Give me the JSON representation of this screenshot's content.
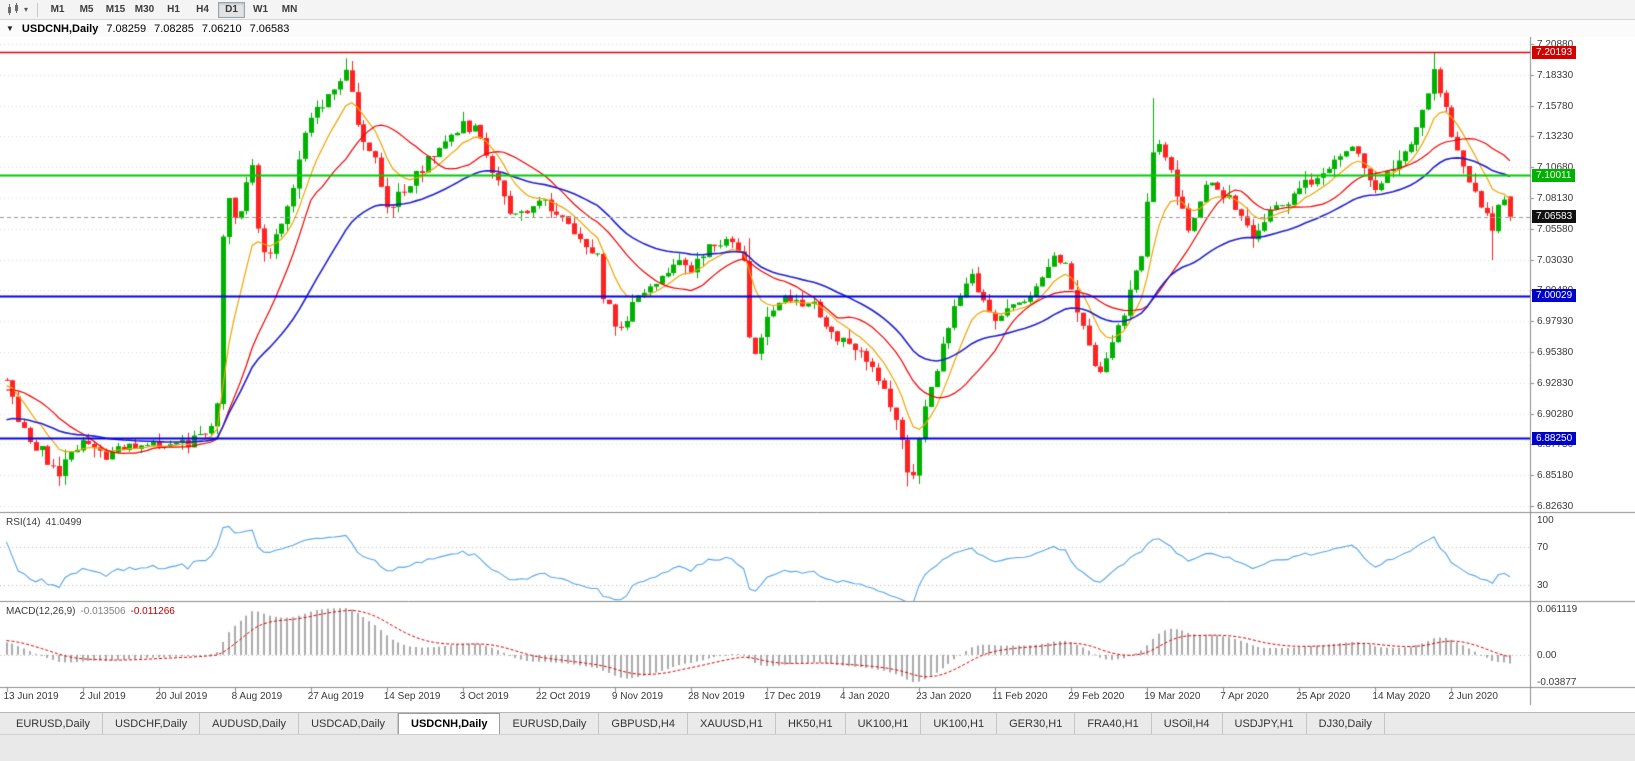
{
  "toolbar": {
    "timeframes": [
      "M1",
      "M5",
      "M15",
      "M30",
      "H1",
      "H4",
      "D1",
      "W1",
      "MN"
    ],
    "active_timeframe": "D1"
  },
  "chart": {
    "title": {
      "collapse_icon": "▼",
      "symbol": "USDCNH,Daily",
      "open": "7.08259",
      "high": "7.08285",
      "low": "7.06210",
      "close": "7.06583"
    },
    "price_axis_ticks": [
      "7.20880",
      "7.18330",
      "7.15780",
      "7.13230",
      "7.10680",
      "7.08130",
      "7.05580",
      "7.03030",
      "7.00480",
      "6.97930",
      "6.95380",
      "6.92830",
      "6.90280",
      "6.87730",
      "6.85180",
      "6.82630"
    ],
    "price_badges": [
      {
        "text": "7.20193",
        "price": 7.20193,
        "bg": "#D40000"
      },
      {
        "text": "7.10011",
        "price": 7.10011,
        "bg": "#00B200"
      },
      {
        "text": "7.06583",
        "price": 7.06583,
        "bg": "#111111"
      },
      {
        "text": "7.00029",
        "price": 7.00029,
        "bg": "#0000CC"
      },
      {
        "text": "6.88250",
        "price": 6.8825,
        "bg": "#0000CC"
      }
    ],
    "horizontal_lines": [
      {
        "price": 7.20193,
        "color": "#E00000",
        "width": 1.5,
        "style": "solid"
      },
      {
        "price": 7.10011,
        "color": "#00CC00",
        "width": 2,
        "style": "solid"
      },
      {
        "price": 7.00029,
        "color": "#0000E6",
        "width": 2,
        "style": "solid"
      },
      {
        "price": 6.8825,
        "color": "#0000E6",
        "width": 2,
        "style": "solid"
      },
      {
        "price": 7.06583,
        "color": "#9A9A9A",
        "width": 1,
        "style": "dash"
      }
    ]
  },
  "chart_data": {
    "type": "candlestick",
    "symbol": "USDCNH",
    "timeframe": "Daily",
    "candles_count": 258,
    "prehistory_bars": 45,
    "noise_seed": 11,
    "up_color": "#00B200",
    "down_color": "#FF2222",
    "last_candle": {
      "open": 7.08259,
      "high": 7.08285,
      "low": 7.0621,
      "close": 7.06583
    },
    "price_path_anchors": [
      [
        -45,
        6.79
      ],
      [
        -30,
        6.862
      ],
      [
        -15,
        6.912
      ],
      [
        -8,
        6.923
      ],
      [
        0,
        6.928
      ],
      [
        2,
        6.9
      ],
      [
        4,
        6.88
      ],
      [
        6,
        6.872
      ],
      [
        8,
        6.856
      ],
      [
        9,
        6.849
      ],
      [
        11,
        6.873
      ],
      [
        13,
        6.88
      ],
      [
        15,
        6.873
      ],
      [
        17,
        6.866
      ],
      [
        19,
        6.874
      ],
      [
        21,
        6.88
      ],
      [
        23,
        6.873
      ],
      [
        25,
        6.877
      ],
      [
        27,
        6.872
      ],
      [
        29,
        6.88
      ],
      [
        31,
        6.878
      ],
      [
        33,
        6.884
      ],
      [
        35,
        6.89
      ],
      [
        36,
        6.908
      ],
      [
        37,
        7.045
      ],
      [
        38,
        7.082
      ],
      [
        39,
        7.062
      ],
      [
        40,
        7.072
      ],
      [
        41,
        7.098
      ],
      [
        42,
        7.108
      ],
      [
        43,
        7.052
      ],
      [
        44,
        7.04
      ],
      [
        45,
        7.032
      ],
      [
        46,
        7.048
      ],
      [
        47,
        7.062
      ],
      [
        48,
        7.072
      ],
      [
        49,
        7.09
      ],
      [
        50,
        7.11
      ],
      [
        51,
        7.135
      ],
      [
        52,
        7.152
      ],
      [
        54,
        7.16
      ],
      [
        56,
        7.172
      ],
      [
        58,
        7.188
      ],
      [
        59,
        7.168
      ],
      [
        60,
        7.142
      ],
      [
        61,
        7.13
      ],
      [
        62,
        7.122
      ],
      [
        63,
        7.112
      ],
      [
        64,
        7.09
      ],
      [
        65,
        7.078
      ],
      [
        66,
        7.072
      ],
      [
        67,
        7.082
      ],
      [
        68,
        7.09
      ],
      [
        70,
        7.1
      ],
      [
        72,
        7.112
      ],
      [
        74,
        7.122
      ],
      [
        76,
        7.132
      ],
      [
        78,
        7.142
      ],
      [
        80,
        7.138
      ],
      [
        82,
        7.12
      ],
      [
        84,
        7.092
      ],
      [
        86,
        7.072
      ],
      [
        88,
        7.068
      ],
      [
        90,
        7.078
      ],
      [
        91,
        7.082
      ],
      [
        93,
        7.072
      ],
      [
        95,
        7.062
      ],
      [
        97,
        7.055
      ],
      [
        99,
        7.042
      ],
      [
        101,
        7.032
      ],
      [
        102,
        6.998
      ],
      [
        103,
        6.99
      ],
      [
        104,
        6.978
      ],
      [
        105,
        6.972
      ],
      [
        107,
        6.992
      ],
      [
        109,
        7.002
      ],
      [
        111,
        7.012
      ],
      [
        113,
        7.022
      ],
      [
        115,
        7.028
      ],
      [
        117,
        7.024
      ],
      [
        119,
        7.036
      ],
      [
        121,
        7.042
      ],
      [
        123,
        7.044
      ],
      [
        125,
        7.038
      ],
      [
        126,
        7.032
      ],
      [
        127,
        6.962
      ],
      [
        128,
        6.952
      ],
      [
        130,
        6.982
      ],
      [
        132,
        6.995
      ],
      [
        134,
        7.0
      ],
      [
        136,
        6.996
      ],
      [
        138,
        6.992
      ],
      [
        140,
        6.978
      ],
      [
        142,
        6.966
      ],
      [
        143,
        6.962
      ],
      [
        145,
        6.958
      ],
      [
        147,
        6.948
      ],
      [
        149,
        6.932
      ],
      [
        151,
        6.908
      ],
      [
        153,
        6.88
      ],
      [
        154,
        6.858
      ],
      [
        155,
        6.852
      ],
      [
        156,
        6.878
      ],
      [
        157,
        6.905
      ],
      [
        158,
        6.928
      ],
      [
        159,
        6.938
      ],
      [
        160,
        6.958
      ],
      [
        161,
        6.972
      ],
      [
        162,
        6.988
      ],
      [
        163,
        7.0
      ],
      [
        164,
        7.008
      ],
      [
        165,
        7.015
      ],
      [
        166,
        7.005
      ],
      [
        167,
        6.995
      ],
      [
        168,
        6.985
      ],
      [
        169,
        6.982
      ],
      [
        171,
        6.988
      ],
      [
        173,
        6.992
      ],
      [
        175,
        7.0
      ],
      [
        177,
        7.018
      ],
      [
        178,
        7.028
      ],
      [
        180,
        7.032
      ],
      [
        181,
        7.028
      ],
      [
        182,
        7.005
      ],
      [
        183,
        6.988
      ],
      [
        184,
        6.972
      ],
      [
        185,
        6.958
      ],
      [
        186,
        6.945
      ],
      [
        187,
        6.938
      ],
      [
        188,
        6.945
      ],
      [
        189,
        6.958
      ],
      [
        190,
        6.972
      ],
      [
        191,
        6.988
      ],
      [
        192,
        7.005
      ],
      [
        193,
        7.022
      ],
      [
        194,
        7.032
      ],
      [
        195,
        7.075
      ],
      [
        196,
        7.118
      ],
      [
        197,
        7.128
      ],
      [
        198,
        7.118
      ],
      [
        199,
        7.108
      ],
      [
        200,
        7.082
      ],
      [
        201,
        7.068
      ],
      [
        202,
        7.055
      ],
      [
        203,
        7.062
      ],
      [
        204,
        7.075
      ],
      [
        205,
        7.088
      ],
      [
        206,
        7.098
      ],
      [
        207,
        7.092
      ],
      [
        208,
        7.085
      ],
      [
        209,
        7.08
      ],
      [
        210,
        7.072
      ],
      [
        211,
        7.065
      ],
      [
        212,
        7.058
      ],
      [
        213,
        7.052
      ],
      [
        214,
        7.056
      ],
      [
        215,
        7.062
      ],
      [
        216,
        7.068
      ],
      [
        217,
        7.072
      ],
      [
        219,
        7.08
      ],
      [
        221,
        7.09
      ],
      [
        223,
        7.094
      ],
      [
        225,
        7.1
      ],
      [
        227,
        7.112
      ],
      [
        229,
        7.122
      ],
      [
        230,
        7.126
      ],
      [
        231,
        7.115
      ],
      [
        232,
        7.105
      ],
      [
        233,
        7.096
      ],
      [
        234,
        7.09
      ],
      [
        235,
        7.095
      ],
      [
        236,
        7.1
      ],
      [
        237,
        7.106
      ],
      [
        238,
        7.112
      ],
      [
        239,
        7.116
      ],
      [
        240,
        7.13
      ],
      [
        241,
        7.14
      ],
      [
        242,
        7.152
      ],
      [
        243,
        7.168
      ],
      [
        244,
        7.185
      ],
      [
        245,
        7.172
      ],
      [
        246,
        7.158
      ],
      [
        247,
        7.136
      ],
      [
        248,
        7.122
      ],
      [
        249,
        7.11
      ],
      [
        250,
        7.098
      ],
      [
        251,
        7.086
      ],
      [
        252,
        7.075
      ],
      [
        253,
        7.065
      ],
      [
        254,
        7.058
      ],
      [
        255,
        7.072
      ],
      [
        256,
        7.083
      ],
      [
        257,
        7.066
      ]
    ],
    "key_extremes": {
      "9": {
        "low": 6.843
      },
      "37": {
        "low": 6.906
      },
      "58": {
        "high": 7.197
      },
      "127": {
        "high": 7.048
      },
      "154": {
        "low": 6.8425
      },
      "196": {
        "high": 7.164
      },
      "244": {
        "high": 7.2019
      },
      "254": {
        "low": 7.03
      }
    },
    "moving_averages": [
      {
        "name": "fast-ma",
        "type": "EMA",
        "period": 8,
        "color": "#EFA500",
        "width": 1.2
      },
      {
        "name": "medium-ma",
        "type": "SMA",
        "period": 16,
        "color": "#F00000",
        "width": 1.2
      },
      {
        "name": "slow-ma",
        "type": "EMA",
        "period": 34,
        "color": "#2020CC",
        "width": 1.6
      }
    ]
  },
  "rsi": {
    "name": "RSI(14)",
    "value": "41.0499",
    "period": 14,
    "color": "#58A6E8",
    "axis_labels": [
      {
        "text": "100",
        "value": 100
      },
      {
        "text": "70",
        "value": 70
      },
      {
        "text": "30",
        "value": 30
      }
    ],
    "dotted_levels": [
      70,
      30
    ]
  },
  "macd": {
    "name": "MACD(12,26,9)",
    "value_main": "-0.013506",
    "value_signal": "-0.011266",
    "fast": 12,
    "slow": 26,
    "signal": 9,
    "hist_color": "#ABABAB",
    "signal_color": "#DD0000",
    "axis_max": "0.061119",
    "axis_zero": "0.00",
    "axis_min": "-0.03877"
  },
  "time_axis": {
    "labels": [
      "13 Jun 2019",
      "2 Jul 2019",
      "20 Jul 2019",
      "8 Aug 2019",
      "27 Aug 2019",
      "14 Sep 2019",
      "3 Oct 2019",
      "22 Oct 2019",
      "9 Nov 2019",
      "28 Nov 2019",
      "17 Dec 2019",
      "4 Jan 2020",
      "23 Jan 2020",
      "11 Feb 2020",
      "29 Feb 2020",
      "19 Mar 2020",
      "7 Apr 2020",
      "25 Apr 2020",
      "14 May 2020",
      "2 Jun 2020"
    ],
    "label_step_bars": 13
  },
  "tabs": {
    "active_index": 4,
    "items": [
      "EURUSD,Daily",
      "USDCHF,Daily",
      "AUDUSD,Daily",
      "USDCAD,Daily",
      "USDCNH,Daily",
      "EURUSD,Daily",
      "GBPUSD,H4",
      "XAUUSD,H1",
      "HK50,H1",
      "UK100,H1",
      "UK100,H1",
      "GER30,H1",
      "FRA40,H1",
      "USOil,H4",
      "USDJPY,H1",
      "DJ30,Daily"
    ]
  }
}
